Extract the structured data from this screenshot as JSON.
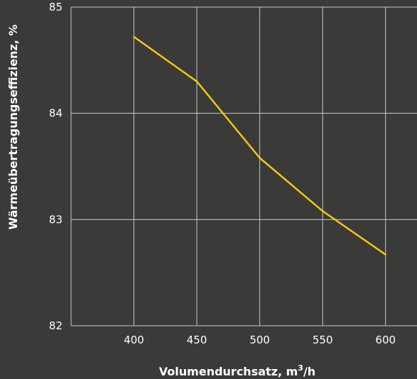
{
  "chart_data": {
    "type": "line",
    "xlabel": "Volumendurchsatz, m",
    "xlabel_superscript": "3",
    "xlabel_suffix": "/h",
    "ylabel": "Wärmeübertragungseffizienz, %",
    "x": [
      400,
      450,
      500,
      550,
      600
    ],
    "series": [
      {
        "values": [
          84.72,
          84.3,
          83.58,
          83.08,
          82.67
        ]
      }
    ],
    "xlim": [
      350,
      625
    ],
    "ylim": [
      82,
      85
    ],
    "xticks": [
      "400",
      "450",
      "500",
      "550",
      "600"
    ],
    "yticks": [
      "82",
      "83",
      "84",
      "85"
    ],
    "grid": true,
    "colors": {
      "line": "#f2c80f",
      "grid": "#c8c8c8",
      "background": "#3a3a38",
      "text": "#ffffff"
    }
  }
}
